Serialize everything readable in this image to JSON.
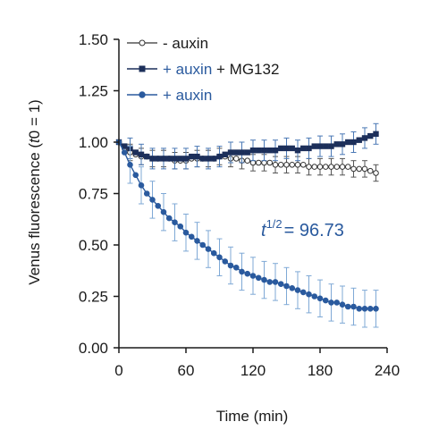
{
  "chart_data": {
    "type": "line",
    "xlabel": "Time (min)",
    "ylabel_parts": [
      "Venus fluorescence (",
      "t",
      "0 = 1)"
    ],
    "xlim": [
      0,
      240
    ],
    "ylim": [
      0,
      1.5
    ],
    "x_ticks": [
      0,
      60,
      120,
      180,
      240
    ],
    "y_ticks": [
      0.0,
      0.25,
      0.5,
      0.75,
      1.0,
      1.25,
      1.5
    ],
    "y_tick_labels": [
      "0.00",
      "0.25",
      "0.50",
      "0.75",
      "1.00",
      "1.25",
      "1.50"
    ],
    "x_tick_labels": [
      "0",
      "60",
      "120",
      "180",
      "240"
    ],
    "grid": false,
    "legend_position": "top-left",
    "annotation": {
      "base": "t",
      "superscript": "1/2",
      "rest": "= 96.73",
      "color": "#2a5a9e"
    },
    "colors": {
      "dark_navy": "#1c2f5a",
      "blue": "#2a5a9e",
      "light_blue": "#7fa9d6",
      "grey": "#555555"
    },
    "series": [
      {
        "name": "- auxin",
        "legend_parts": [
          {
            "text": "- auxin",
            "color": "#1a1a1a"
          }
        ],
        "marker": "open-circle",
        "x": [
          0,
          5,
          10,
          15,
          20,
          25,
          30,
          35,
          40,
          45,
          50,
          55,
          60,
          65,
          70,
          75,
          80,
          85,
          90,
          95,
          100,
          105,
          110,
          115,
          120,
          125,
          130,
          135,
          140,
          145,
          150,
          155,
          160,
          165,
          170,
          175,
          180,
          185,
          190,
          195,
          200,
          205,
          210,
          215,
          220,
          225,
          230
        ],
        "y": [
          1.0,
          0.97,
          0.95,
          0.94,
          0.93,
          0.93,
          0.92,
          0.92,
          0.92,
          0.92,
          0.91,
          0.91,
          0.91,
          0.92,
          0.92,
          0.92,
          0.92,
          0.92,
          0.93,
          0.93,
          0.92,
          0.92,
          0.91,
          0.91,
          0.9,
          0.9,
          0.9,
          0.9,
          0.89,
          0.89,
          0.89,
          0.89,
          0.89,
          0.89,
          0.88,
          0.88,
          0.88,
          0.88,
          0.88,
          0.88,
          0.88,
          0.88,
          0.87,
          0.87,
          0.87,
          0.86,
          0.85
        ],
        "err": 0.04
      },
      {
        "name": "+ auxin + MG132",
        "legend_parts": [
          {
            "text": "+ auxin",
            "color": "#2a5a9e"
          },
          {
            "text": " + MG132",
            "color": "#1a1a1a"
          }
        ],
        "marker": "square",
        "x": [
          0,
          5,
          10,
          15,
          20,
          25,
          30,
          35,
          40,
          45,
          50,
          55,
          60,
          65,
          70,
          75,
          80,
          85,
          90,
          95,
          100,
          105,
          110,
          115,
          120,
          125,
          130,
          135,
          140,
          145,
          150,
          155,
          160,
          165,
          170,
          175,
          180,
          185,
          190,
          195,
          200,
          205,
          210,
          215,
          220,
          225,
          230
        ],
        "y": [
          1.0,
          0.98,
          0.97,
          0.95,
          0.94,
          0.93,
          0.92,
          0.92,
          0.92,
          0.92,
          0.92,
          0.92,
          0.92,
          0.93,
          0.93,
          0.92,
          0.92,
          0.92,
          0.93,
          0.94,
          0.95,
          0.95,
          0.95,
          0.95,
          0.96,
          0.96,
          0.96,
          0.96,
          0.96,
          0.97,
          0.97,
          0.97,
          0.96,
          0.97,
          0.97,
          0.98,
          0.98,
          0.98,
          0.98,
          0.99,
          0.99,
          1.0,
          1.0,
          1.01,
          1.02,
          1.03,
          1.04
        ],
        "err": 0.05
      },
      {
        "name": "+ auxin",
        "legend_parts": [
          {
            "text": "+ auxin",
            "color": "#2a5a9e"
          }
        ],
        "marker": "filled-circle",
        "x": [
          0,
          5,
          10,
          15,
          20,
          25,
          30,
          35,
          40,
          45,
          50,
          55,
          60,
          65,
          70,
          75,
          80,
          85,
          90,
          95,
          100,
          105,
          110,
          115,
          120,
          125,
          130,
          135,
          140,
          145,
          150,
          155,
          160,
          165,
          170,
          175,
          180,
          185,
          190,
          195,
          200,
          205,
          210,
          215,
          220,
          225,
          230
        ],
        "y": [
          1.0,
          0.95,
          0.89,
          0.84,
          0.79,
          0.75,
          0.72,
          0.69,
          0.66,
          0.63,
          0.61,
          0.59,
          0.56,
          0.54,
          0.52,
          0.5,
          0.48,
          0.46,
          0.44,
          0.42,
          0.4,
          0.39,
          0.37,
          0.36,
          0.35,
          0.34,
          0.33,
          0.32,
          0.32,
          0.31,
          0.3,
          0.29,
          0.28,
          0.27,
          0.26,
          0.25,
          0.24,
          0.23,
          0.22,
          0.22,
          0.21,
          0.2,
          0.2,
          0.19,
          0.19,
          0.19,
          0.19
        ],
        "err": 0.09
      }
    ]
  }
}
